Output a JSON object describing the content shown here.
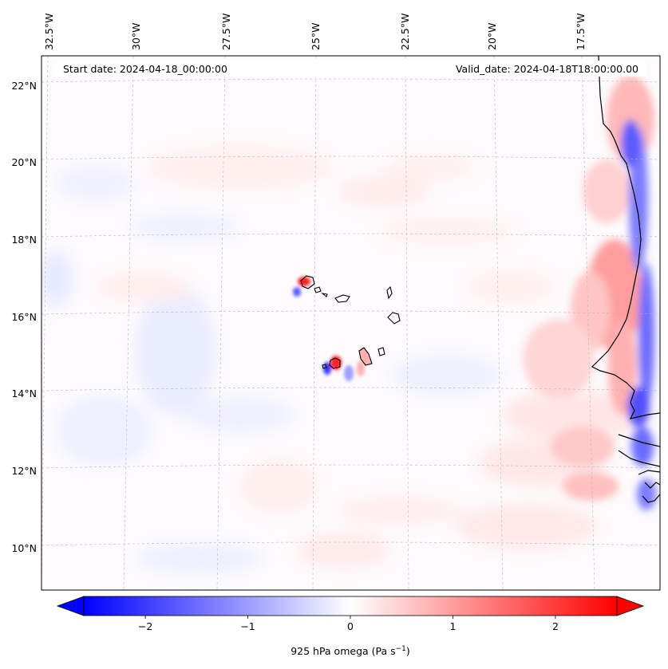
{
  "header": {
    "start_date": "Start date: 2024-04-18_00:00:00",
    "valid_date": "Valid_date: 2024-04-18T18:00:00.00"
  },
  "map": {
    "projection": "lambert-conformal",
    "lon_range": [
      -32.7,
      -15.0
    ],
    "lat_range": [
      8.8,
      22.8
    ],
    "lon_ticks": [
      {
        "value": -32.5,
        "label": "32.5°W"
      },
      {
        "value": -30.0,
        "label": "30°W"
      },
      {
        "value": -27.5,
        "label": "27.5°W"
      },
      {
        "value": -25.0,
        "label": "25°W"
      },
      {
        "value": -22.5,
        "label": "22.5°W"
      },
      {
        "value": -20.0,
        "label": "20°W"
      },
      {
        "value": -17.5,
        "label": "17.5°W"
      }
    ],
    "lat_ticks": [
      {
        "value": 22,
        "label": "22°N"
      },
      {
        "value": 20,
        "label": "20°N"
      },
      {
        "value": 18,
        "label": "18°N"
      },
      {
        "value": 16,
        "label": "16°N"
      },
      {
        "value": 14,
        "label": "14°N"
      },
      {
        "value": 12,
        "label": "12°N"
      },
      {
        "value": 10,
        "label": "10°N"
      }
    ],
    "gridlines": true,
    "field": "925 hPa omega",
    "features": [
      "Cape Verde islands",
      "West African coastline"
    ]
  },
  "colorbar": {
    "label": "925 hPa omega (Pa s",
    "label_sup": "−1",
    "label_close": ")",
    "min": -2.6,
    "max": 2.6,
    "colormap": "bwr",
    "colors": {
      "low": "#0000ff",
      "mid": "#ffffff",
      "high": "#ff0000"
    },
    "extend": "both",
    "ticks": [
      {
        "value": -2,
        "label": "−2"
      },
      {
        "value": -1,
        "label": "−1"
      },
      {
        "value": 0,
        "label": "0"
      },
      {
        "value": 1,
        "label": "1"
      },
      {
        "value": 2,
        "label": "2"
      }
    ]
  }
}
